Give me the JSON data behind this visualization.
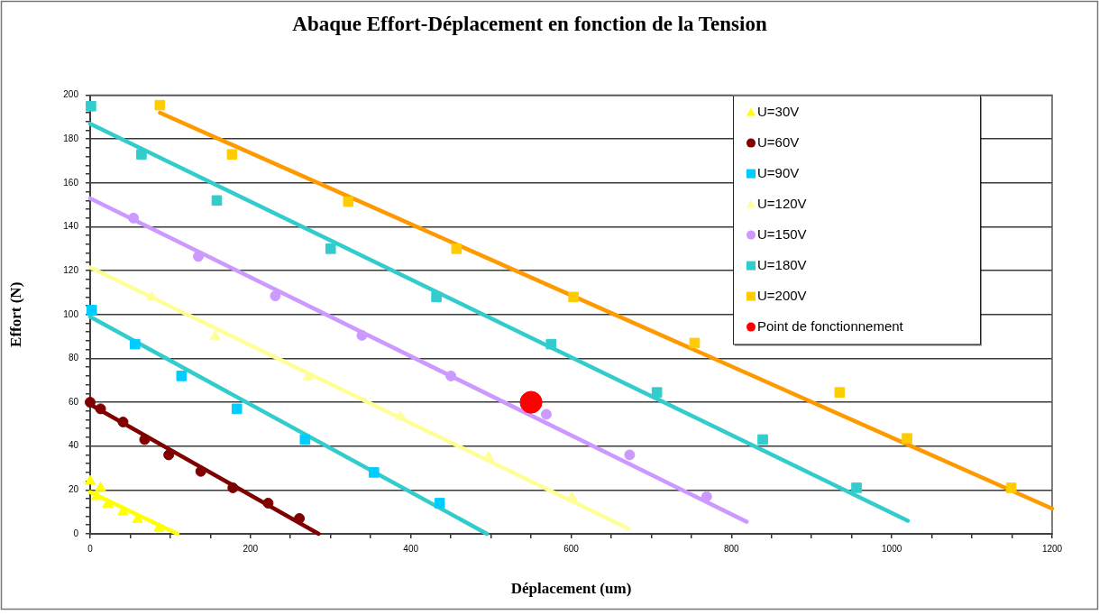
{
  "chart_data": {
    "type": "scatter",
    "title": "Abaque Effort-Déplacement en fonction de la Tension",
    "xlabel": "Déplacement (um)",
    "ylabel": "Effort (N)",
    "xlim": [
      0,
      1200
    ],
    "ylim": [
      0,
      200
    ],
    "xticks": [
      0,
      {
        "value": 50,
        "label": null
      },
      {
        "value": 100,
        "label": null
      },
      {
        "value": 150,
        "label": null
      },
      200,
      {
        "value": 250,
        "label": null
      },
      {
        "value": 300,
        "label": null
      },
      {
        "value": 350,
        "label": null
      },
      400,
      {
        "value": 450,
        "label": null
      },
      {
        "value": 500,
        "label": null
      },
      {
        "value": 550,
        "label": null
      },
      600,
      {
        "value": 650,
        "label": null
      },
      {
        "value": 700,
        "label": null
      },
      {
        "value": 750,
        "label": null
      },
      800,
      {
        "value": 850,
        "label": null
      },
      {
        "value": 900,
        "label": null
      },
      {
        "value": 950,
        "label": null
      },
      1000,
      {
        "value": 1050,
        "label": null
      },
      {
        "value": 1100,
        "label": null
      },
      {
        "value": 1150,
        "label": null
      },
      1200
    ],
    "yticks": [
      0,
      {
        "value": 4,
        "label": null
      },
      {
        "value": 8,
        "label": null
      },
      {
        "value": 12,
        "label": null
      },
      {
        "value": 16,
        "label": null
      },
      20,
      {
        "value": 24,
        "label": null
      },
      {
        "value": 28,
        "label": null
      },
      {
        "value": 32,
        "label": null
      },
      {
        "value": 36,
        "label": null
      },
      40,
      {
        "value": 44,
        "label": null
      },
      {
        "value": 48,
        "label": null
      },
      {
        "value": 52,
        "label": null
      },
      {
        "value": 56,
        "label": null
      },
      60,
      {
        "value": 64,
        "label": null
      },
      {
        "value": 68,
        "label": null
      },
      {
        "value": 72,
        "label": null
      },
      {
        "value": 76,
        "label": null
      },
      80,
      {
        "value": 84,
        "label": null
      },
      {
        "value": 88,
        "label": null
      },
      {
        "value": 92,
        "label": null
      },
      {
        "value": 96,
        "label": null
      },
      100,
      {
        "value": 104,
        "label": null
      },
      {
        "value": 108,
        "label": null
      },
      {
        "value": 112,
        "label": null
      },
      {
        "value": 116,
        "label": null
      },
      120,
      {
        "value": 124,
        "label": null
      },
      {
        "value": 128,
        "label": null
      },
      {
        "value": 132,
        "label": null
      },
      {
        "value": 136,
        "label": null
      },
      140,
      {
        "value": 144,
        "label": null
      },
      {
        "value": 148,
        "label": null
      },
      {
        "value": 152,
        "label": null
      },
      {
        "value": 156,
        "label": null
      },
      160,
      {
        "value": 164,
        "label": null
      },
      {
        "value": 168,
        "label": null
      },
      {
        "value": 172,
        "label": null
      },
      {
        "value": 176,
        "label": null
      },
      180,
      {
        "value": 184,
        "label": null
      },
      {
        "value": 188,
        "label": null
      },
      {
        "value": 192,
        "label": null
      },
      {
        "value": 196,
        "label": null
      },
      200
    ],
    "grid": "y",
    "legend": "top right",
    "series": [
      {
        "name": "U=30V",
        "color": "#ffff00",
        "marker": "triangle",
        "x": [
          0,
          8,
          13,
          22,
          41,
          59,
          86
        ],
        "values": [
          24,
          17,
          21,
          13.5,
          10,
          6.5,
          2.5
        ]
      },
      {
        "name": "U=60V",
        "color": "#800000",
        "marker": "circle",
        "x": [
          0,
          13,
          41,
          68,
          98,
          138,
          178,
          222,
          261
        ],
        "values": [
          60,
          57,
          51,
          43,
          36,
          28.5,
          21,
          14,
          7
        ]
      },
      {
        "name": "U=90V",
        "color": "#00ccff",
        "marker": "square",
        "x": [
          2,
          56,
          114,
          183,
          268,
          354,
          436
        ],
        "values": [
          102,
          86.5,
          72,
          57,
          43,
          28,
          14
        ]
      },
      {
        "name": "U=120V",
        "color": "#ffff99",
        "marker": "triangle",
        "x": [
          77,
          156,
          272,
          387,
          497,
          601
        ],
        "values": [
          108,
          90,
          71.5,
          53.5,
          35,
          16.5
        ]
      },
      {
        "name": "U=150V",
        "color": "#cc99ff",
        "marker": "circle",
        "x": [
          54,
          135,
          231,
          339,
          450,
          569,
          673,
          769
        ],
        "values": [
          144,
          126.5,
          108.5,
          90.5,
          72,
          54.5,
          36,
          17
        ]
      },
      {
        "name": "U=180V",
        "color": "#33cccc",
        "marker": "square",
        "x": [
          1,
          64,
          158,
          300,
          432,
          575,
          707,
          839,
          956
        ],
        "values": [
          195,
          173,
          152,
          130,
          108,
          86.5,
          64.5,
          43,
          21
        ]
      },
      {
        "name": "U=200V",
        "color": "#ffcc00",
        "marker": "square",
        "x": [
          87,
          177,
          322,
          457,
          603,
          754,
          935,
          1019,
          1149
        ],
        "values": [
          195.5,
          173,
          151.5,
          130,
          108,
          87,
          64.5,
          43.5,
          21
        ]
      },
      {
        "name": "Point de fonctionnement",
        "color": "#ff0000",
        "marker": "circle",
        "x": [
          550
        ],
        "values": [
          60
        ]
      },
      {
        "type": "line",
        "color": "#ffff00",
        "x": [
          0,
          109
        ],
        "values": [
          19,
          0
        ]
      },
      {
        "type": "line",
        "color": "#800000",
        "x": [
          0,
          285
        ],
        "values": [
          59,
          0
        ]
      },
      {
        "type": "line",
        "color": "#33cccc",
        "x": [
          0,
          495
        ],
        "values": [
          99,
          0
        ]
      },
      {
        "type": "line",
        "color": "#ffff99",
        "x": [
          0,
          671
        ],
        "values": [
          121.5,
          2.5
        ]
      },
      {
        "type": "line",
        "color": "#cc99ff",
        "x": [
          0,
          819
        ],
        "values": [
          153,
          5.5
        ]
      },
      {
        "type": "line",
        "color": "#33cccc",
        "x": [
          0,
          1020
        ],
        "values": [
          187,
          6
        ]
      },
      {
        "type": "line",
        "color": "#ff9900",
        "x": [
          87,
          1200
        ],
        "values": [
          192,
          11.5
        ]
      }
    ]
  }
}
